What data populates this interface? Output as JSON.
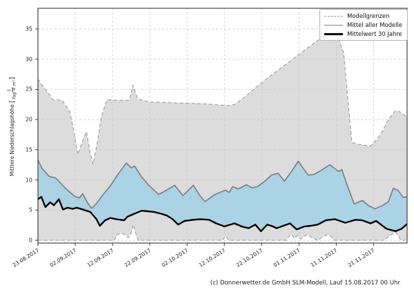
{
  "figure": {
    "caption": "(c) Donnerwetter.de GmbH SLM-Modell, Lauf 15.08.2017 00 Uhr"
  },
  "chart_data": {
    "type": "area",
    "title": "",
    "xlabel": "",
    "ylabel": "Mittlere Niederschlagshöhe",
    "ylabel_unit": {
      "open_bracket": "[",
      "numerator": "L",
      "denominator": "Tag × m²",
      "close_bracket": "]"
    },
    "x_unit": "days since 23.08.2017",
    "xlim": [
      0,
      99
    ],
    "ylim": [
      -0.5,
      38.5
    ],
    "grid": true,
    "x_axis": {
      "tick_days": [
        0,
        10,
        20,
        30,
        40,
        50,
        60,
        70,
        80,
        90
      ],
      "tick_labels": [
        "23.08.2017",
        "02.09.2017",
        "12.09.2017",
        "22.09.2017",
        "02.10.2017",
        "12.10.2017",
        "22.10.2017",
        "01.11.2017",
        "11.11.2017",
        "21.11.2017"
      ]
    },
    "y_axis": {
      "ticks": [
        0,
        5,
        10,
        15,
        20,
        25,
        30,
        35
      ],
      "tick_labels": [
        "0",
        "5",
        "10",
        "15",
        "20",
        "25",
        "30",
        "35"
      ]
    },
    "legend": {
      "position": "upper right",
      "entries": [
        {
          "label": "Modellgrenzen",
          "sample": "dashed-gray"
        },
        {
          "label": "Mittel aller Modelle",
          "sample": "solid-gray"
        },
        {
          "label": "Mittelwert 30 Jahre",
          "sample": "solid-black"
        }
      ]
    },
    "colors": {
      "model_band_fill": "#dcdcdc",
      "mean_band_fill": "#aad4e6",
      "model_bounds_line": "#999999",
      "mean_models_line": "#7f7f7f",
      "mean_30y_line": "#000000",
      "grid_line": "#cccccc",
      "frame": "#333333"
    },
    "bands": [
      {
        "name": "model-range-band",
        "upper": "model_max",
        "lower": "model_min",
        "color_key": "model_band_fill"
      },
      {
        "name": "mean-vs-climate-band",
        "upper": "mean_models",
        "lower": "mean_30y",
        "color_key": "mean_band_fill"
      }
    ],
    "series": {
      "model_max": {
        "label": "Modellgrenzen",
        "style": "dashed",
        "color_key": "model_bounds_line",
        "width": 1.1,
        "points": [
          [
            0,
            26.7
          ],
          [
            1,
            25.8
          ],
          [
            2.5,
            24.6
          ],
          [
            4,
            23.3
          ],
          [
            6.5,
            23.2
          ],
          [
            8.5,
            21.4
          ],
          [
            9.5,
            18.5
          ],
          [
            10.7,
            14.2
          ],
          [
            12,
            16.5
          ],
          [
            13,
            18.0
          ],
          [
            14,
            14.5
          ],
          [
            14.8,
            12.6
          ],
          [
            16,
            16.5
          ],
          [
            17,
            20.5
          ],
          [
            18.5,
            23.3
          ],
          [
            21,
            23.2
          ],
          [
            24.5,
            23.2
          ],
          [
            25.5,
            25.7
          ],
          [
            26.8,
            23.4
          ],
          [
            30,
            22.9
          ],
          [
            35,
            22.8
          ],
          [
            40,
            22.7
          ],
          [
            45,
            22.6
          ],
          [
            49,
            22.4
          ],
          [
            51,
            22.3
          ],
          [
            52.7,
            22.5
          ],
          [
            55,
            23.5
          ],
          [
            58,
            25.1
          ],
          [
            61,
            26.6
          ],
          [
            64,
            28.0
          ],
          [
            67,
            29.4
          ],
          [
            70,
            30.8
          ],
          [
            73,
            32.2
          ],
          [
            76,
            33.5
          ],
          [
            78,
            34.3
          ],
          [
            80,
            34.5
          ],
          [
            82,
            31.0
          ],
          [
            83.3,
            22.0
          ],
          [
            84.2,
            16.2
          ],
          [
            86,
            15.9
          ],
          [
            88,
            15.7
          ],
          [
            89.2,
            15.6
          ],
          [
            91,
            16.8
          ],
          [
            92.5,
            18.2
          ],
          [
            94,
            20.0
          ],
          [
            95.7,
            21.4
          ],
          [
            97,
            21.3
          ],
          [
            98.6,
            20.6
          ],
          [
            99,
            20.5
          ]
        ]
      },
      "model_min": {
        "label": "Modellgrenzen",
        "style": "dashed",
        "color_key": "model_bounds_line",
        "width": 1.1,
        "points": [
          [
            0,
            0
          ],
          [
            20.5,
            0
          ],
          [
            21.3,
            1.0
          ],
          [
            22.5,
            1.1
          ],
          [
            23.5,
            0.9
          ],
          [
            24.2,
            0.4
          ],
          [
            25,
            1.2
          ],
          [
            25.5,
            2.6
          ],
          [
            26.2,
            1.2
          ],
          [
            26.9,
            0
          ],
          [
            49.5,
            0
          ],
          [
            50.3,
            0.7
          ],
          [
            51.2,
            0
          ],
          [
            66.5,
            0
          ],
          [
            67.2,
            0.6
          ],
          [
            68,
            1.0
          ],
          [
            68.8,
            0.3
          ],
          [
            69.6,
            0.8
          ],
          [
            70.5,
            0.2
          ],
          [
            71.5,
            0.7
          ],
          [
            72.5,
            0.9
          ],
          [
            73.5,
            0.4
          ],
          [
            75,
            0
          ],
          [
            76.5,
            0.6
          ],
          [
            77.5,
            0.9
          ],
          [
            78.5,
            0.7
          ],
          [
            79.5,
            0
          ],
          [
            92.8,
            0
          ],
          [
            94.5,
            0.8
          ],
          [
            95.8,
            1.4
          ],
          [
            96.8,
            0.6
          ],
          [
            97.3,
            0
          ],
          [
            99,
            0
          ]
        ]
      },
      "mean_models": {
        "label": "Mittel aller Modelle",
        "style": "solid",
        "color_key": "mean_models_line",
        "width": 1.7,
        "points": [
          [
            0,
            13.3
          ],
          [
            1.1,
            11.9
          ],
          [
            3,
            10.6
          ],
          [
            4.8,
            10.3
          ],
          [
            7.4,
            8.6
          ],
          [
            9.8,
            7.3
          ],
          [
            11.1,
            7.0
          ],
          [
            12,
            7.7
          ],
          [
            13.3,
            6.2
          ],
          [
            14.4,
            5.3
          ],
          [
            15.7,
            6.1
          ],
          [
            17,
            7.2
          ],
          [
            19.4,
            9.0
          ],
          [
            21.3,
            10.8
          ],
          [
            23.7,
            12.8
          ],
          [
            25,
            12.0
          ],
          [
            25.9,
            12.3
          ],
          [
            27.8,
            10.5
          ],
          [
            29.6,
            9.2
          ],
          [
            31.5,
            8.1
          ],
          [
            32.4,
            7.6
          ],
          [
            34.5,
            8.3
          ],
          [
            36.7,
            9.1
          ],
          [
            38.9,
            7.4
          ],
          [
            40.5,
            8.4
          ],
          [
            41.7,
            9.1
          ],
          [
            43.3,
            7.5
          ],
          [
            44.8,
            6.4
          ],
          [
            47.2,
            7.5
          ],
          [
            50.3,
            8.3
          ],
          [
            51.3,
            7.9
          ],
          [
            52.2,
            8.9
          ],
          [
            53.7,
            8.5
          ],
          [
            55.9,
            9.2
          ],
          [
            57.4,
            8.7
          ],
          [
            58.9,
            8.9
          ],
          [
            61.1,
            9.9
          ],
          [
            62.6,
            10.8
          ],
          [
            64.4,
            11.1
          ],
          [
            66.1,
            9.8
          ],
          [
            68,
            11.4
          ],
          [
            69.8,
            13.1
          ],
          [
            71.5,
            11.6
          ],
          [
            72.5,
            10.8
          ],
          [
            74,
            10.9
          ],
          [
            76,
            11.6
          ],
          [
            78.3,
            12.5
          ],
          [
            80.6,
            11.4
          ],
          [
            81.5,
            11.7
          ],
          [
            83,
            9.0
          ],
          [
            84.8,
            6.0
          ],
          [
            87,
            6.6
          ],
          [
            88.5,
            5.8
          ],
          [
            90.4,
            5.2
          ],
          [
            92.5,
            5.8
          ],
          [
            94,
            6.4
          ],
          [
            95.3,
            8.6
          ],
          [
            96.5,
            8.3
          ],
          [
            98,
            7.1
          ],
          [
            99,
            7.2
          ]
        ]
      },
      "mean_30y": {
        "label": "Mittelwert 30 Jahre",
        "style": "solid",
        "color_key": "mean_30y_line",
        "width": 2.4,
        "points": [
          [
            0,
            6.8
          ],
          [
            0.9,
            7.2
          ],
          [
            2,
            5.5
          ],
          [
            3.3,
            6.3
          ],
          [
            4.3,
            5.8
          ],
          [
            5.6,
            6.8
          ],
          [
            6.7,
            5.1
          ],
          [
            8,
            5.4
          ],
          [
            9.3,
            5.2
          ],
          [
            10.4,
            5.4
          ],
          [
            11.5,
            5.2
          ],
          [
            13,
            4.9
          ],
          [
            14,
            4.7
          ],
          [
            15.7,
            3.5
          ],
          [
            16.6,
            2.4
          ],
          [
            18,
            3.3
          ],
          [
            19.4,
            3.7
          ],
          [
            21,
            3.5
          ],
          [
            23.1,
            3.3
          ],
          [
            24,
            3.9
          ],
          [
            25.5,
            4.3
          ],
          [
            27.8,
            4.9
          ],
          [
            29.4,
            4.8
          ],
          [
            31.1,
            4.7
          ],
          [
            33,
            4.4
          ],
          [
            34.6,
            4.1
          ],
          [
            36.1,
            3.5
          ],
          [
            37.6,
            2.6
          ],
          [
            39.3,
            3.2
          ],
          [
            41.7,
            3.4
          ],
          [
            43.5,
            3.5
          ],
          [
            45.9,
            3.4
          ],
          [
            47.8,
            2.8
          ],
          [
            50,
            2.3
          ],
          [
            52.7,
            2.8
          ],
          [
            54.6,
            2.3
          ],
          [
            56.5,
            2.0
          ],
          [
            58.3,
            2.6
          ],
          [
            59.8,
            1.5
          ],
          [
            61.5,
            2.6
          ],
          [
            63,
            2.3
          ],
          [
            64,
            2.0
          ],
          [
            67.6,
            2.8
          ],
          [
            69.4,
            1.8
          ],
          [
            71.5,
            2.3
          ],
          [
            73.2,
            2.4
          ],
          [
            75,
            2.6
          ],
          [
            77.2,
            3.3
          ],
          [
            79.6,
            3.5
          ],
          [
            82.4,
            2.9
          ],
          [
            85.2,
            3.4
          ],
          [
            87,
            3.3
          ],
          [
            89.2,
            2.8
          ],
          [
            90.7,
            3.2
          ],
          [
            93.5,
            1.9
          ],
          [
            95.9,
            1.5
          ],
          [
            97.5,
            1.9
          ],
          [
            99,
            2.7
          ]
        ]
      }
    }
  }
}
